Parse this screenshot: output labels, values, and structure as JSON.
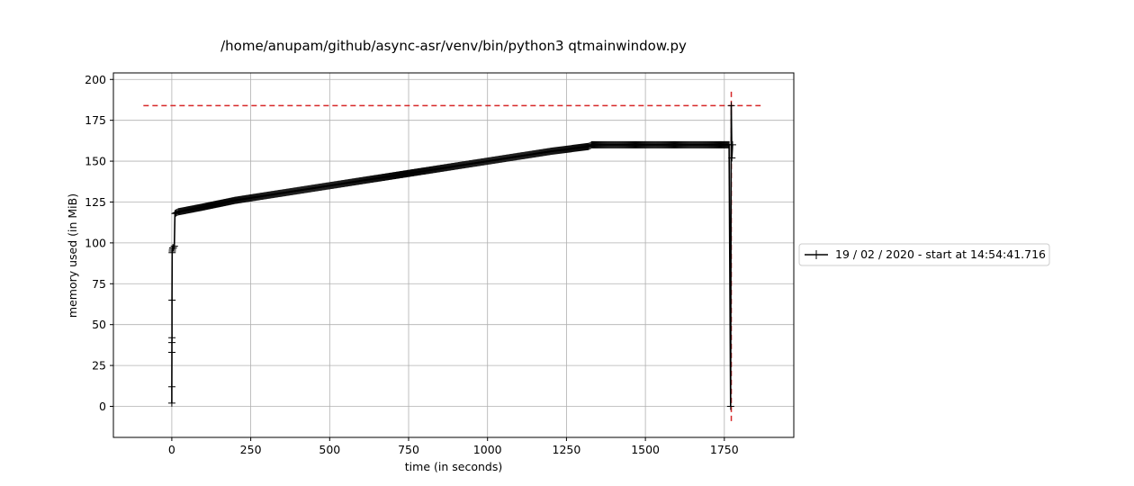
{
  "chart_data": {
    "type": "line",
    "title": "/home/anupam/github/async-asr/venv/bin/python3 qtmainwindow.py",
    "xlabel": "time (in seconds)",
    "ylabel": "memory used (in MiB)",
    "xlim": [
      -185,
      1970
    ],
    "ylim": [
      -19,
      204
    ],
    "x_ticks": [
      0,
      250,
      500,
      750,
      1000,
      1250,
      1500,
      1750
    ],
    "y_ticks": [
      0,
      25,
      50,
      75,
      100,
      125,
      150,
      175,
      200
    ],
    "x_tick_labels": [
      "0",
      "250",
      "500",
      "750",
      "1000",
      "1250",
      "1500",
      "1750"
    ],
    "y_tick_labels": [
      "0",
      "25",
      "50",
      "75",
      "100",
      "125",
      "150",
      "175",
      "200"
    ],
    "grid": true,
    "legend_position": "right-outside",
    "series": [
      {
        "name": "19 / 02 / 2020 - start at 14:54:41.716",
        "color": "#000000",
        "marker": "+",
        "x": [
          0,
          0.1,
          0.2,
          0.3,
          0.5,
          0.7,
          1,
          1.5,
          2,
          3,
          5,
          8,
          10,
          20,
          100,
          200,
          300,
          400,
          500,
          600,
          700,
          800,
          900,
          1000,
          1100,
          1200,
          1320,
          1330,
          1500,
          1650,
          1765,
          1770,
          1772,
          1774,
          1776
        ],
        "values": [
          2,
          12,
          33,
          39,
          42,
          65,
          94,
          95,
          96,
          97,
          97,
          98,
          118,
          119,
          122,
          126,
          129,
          132,
          135,
          138,
          141,
          144,
          147,
          150,
          153,
          156,
          159,
          160,
          160,
          160,
          160,
          0,
          184,
          152,
          160
        ]
      }
    ],
    "reference_lines": [
      {
        "orientation": "horizontal",
        "value": 184,
        "from": -90,
        "to": 1865,
        "color": "#d62728",
        "style": "dashed"
      },
      {
        "orientation": "vertical",
        "value": 1772,
        "from": -9,
        "to": 193,
        "color": "#d62728",
        "style": "dashed"
      }
    ]
  }
}
